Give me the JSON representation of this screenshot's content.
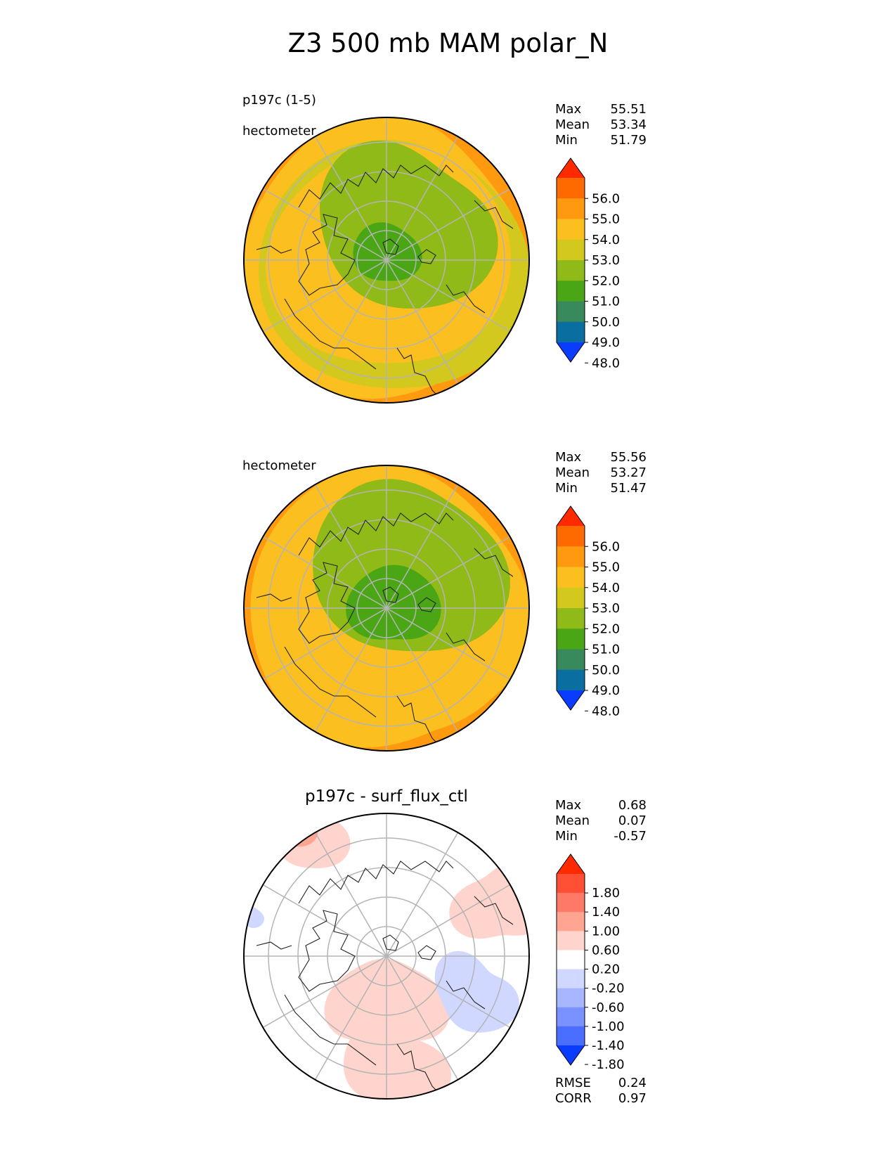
{
  "figure": {
    "title": "Z3 500 mb MAM polar_N"
  },
  "panels": [
    {
      "id": "test",
      "label_lines": [
        "p197c (1-5)",
        "hectometer"
      ],
      "title": "",
      "stats": [
        {
          "label": "Max",
          "value": "55.51"
        },
        {
          "label": "Mean",
          "value": "53.34"
        },
        {
          "label": "Min",
          "value": "51.79"
        }
      ],
      "colorbar": {
        "ticks": [
          "56.0",
          "55.0",
          "54.0",
          "53.0",
          "52.0",
          "51.0",
          "50.0",
          "49.0",
          "48.0"
        ],
        "colors": [
          "#ff2a00",
          "#ff6a00",
          "#ff9a10",
          "#fcbf20",
          "#d2c81e",
          "#90ba18",
          "#4aa614",
          "#388a5c",
          "#0a6ea0",
          "#0a3cff"
        ]
      },
      "extra_stats": []
    },
    {
      "id": "reference",
      "label_lines": [
        "hectometer"
      ],
      "title": "",
      "stats": [
        {
          "label": "Max",
          "value": "55.56"
        },
        {
          "label": "Mean",
          "value": "53.27"
        },
        {
          "label": "Min",
          "value": "51.47"
        }
      ],
      "colorbar": {
        "ticks": [
          "56.0",
          "55.0",
          "54.0",
          "53.0",
          "52.0",
          "51.0",
          "50.0",
          "49.0",
          "48.0"
        ],
        "colors": [
          "#ff2a00",
          "#ff6a00",
          "#ff9a10",
          "#fcbf20",
          "#d2c81e",
          "#90ba18",
          "#4aa614",
          "#388a5c",
          "#0a6ea0",
          "#0a3cff"
        ]
      },
      "extra_stats": []
    },
    {
      "id": "difference",
      "label_lines": [],
      "title": "p197c - surf_flux_ctl",
      "stats": [
        {
          "label": "Max",
          "value": "0.68"
        },
        {
          "label": "Mean",
          "value": "0.07"
        },
        {
          "label": "Min",
          "value": "-0.57"
        }
      ],
      "colorbar": {
        "ticks": [
          "1.80",
          "1.40",
          "1.00",
          "0.60",
          "0.20",
          "-0.20",
          "-0.60",
          "-1.00",
          "-1.40",
          "-1.80"
        ],
        "colors": [
          "#ff2a00",
          "#ff5036",
          "#ff7a66",
          "#ffa592",
          "#ffd4cc",
          "#ffffff",
          "#d0d8ff",
          "#a6b6ff",
          "#7a92ff",
          "#4a6eff",
          "#0a3cff"
        ]
      },
      "extra_stats": [
        {
          "label": "RMSE",
          "value": "0.24"
        },
        {
          "label": "CORR",
          "value": "0.97"
        }
      ]
    }
  ],
  "chart_data": [
    {
      "type": "heatmap",
      "panel": "test",
      "projection": "north polar stereographic",
      "variable": "Z3 500 mb",
      "units": "hectometer",
      "stats": {
        "max": 55.51,
        "mean": 53.34,
        "min": 51.79
      },
      "levels": [
        48.0,
        49.0,
        50.0,
        51.0,
        52.0,
        53.0,
        54.0,
        55.0,
        56.0
      ],
      "field_regions": [
        {
          "level_range": [
            51,
            52
          ],
          "description": "pole centre"
        },
        {
          "level_range": [
            52,
            53
          ],
          "description": "inner ring"
        },
        {
          "level_range": [
            53,
            54
          ],
          "description": "mid latitudes"
        },
        {
          "level_range": [
            54,
            56
          ],
          "description": "outer edge"
        }
      ]
    },
    {
      "type": "heatmap",
      "panel": "reference",
      "projection": "north polar stereographic",
      "variable": "Z3 500 mb",
      "units": "hectometer",
      "stats": {
        "max": 55.56,
        "mean": 53.27,
        "min": 51.47
      },
      "levels": [
        48.0,
        49.0,
        50.0,
        51.0,
        52.0,
        53.0,
        54.0,
        55.0,
        56.0
      ]
    },
    {
      "type": "heatmap",
      "panel": "difference",
      "title": "p197c - surf_flux_ctl",
      "projection": "north polar stereographic",
      "stats": {
        "max": 0.68,
        "mean": 0.07,
        "min": -0.57,
        "rmse": 0.24,
        "corr": 0.97
      },
      "levels": [
        -1.8,
        -1.4,
        -1.0,
        -0.6,
        -0.2,
        0.2,
        0.6,
        1.0,
        1.4,
        1.8
      ]
    }
  ]
}
